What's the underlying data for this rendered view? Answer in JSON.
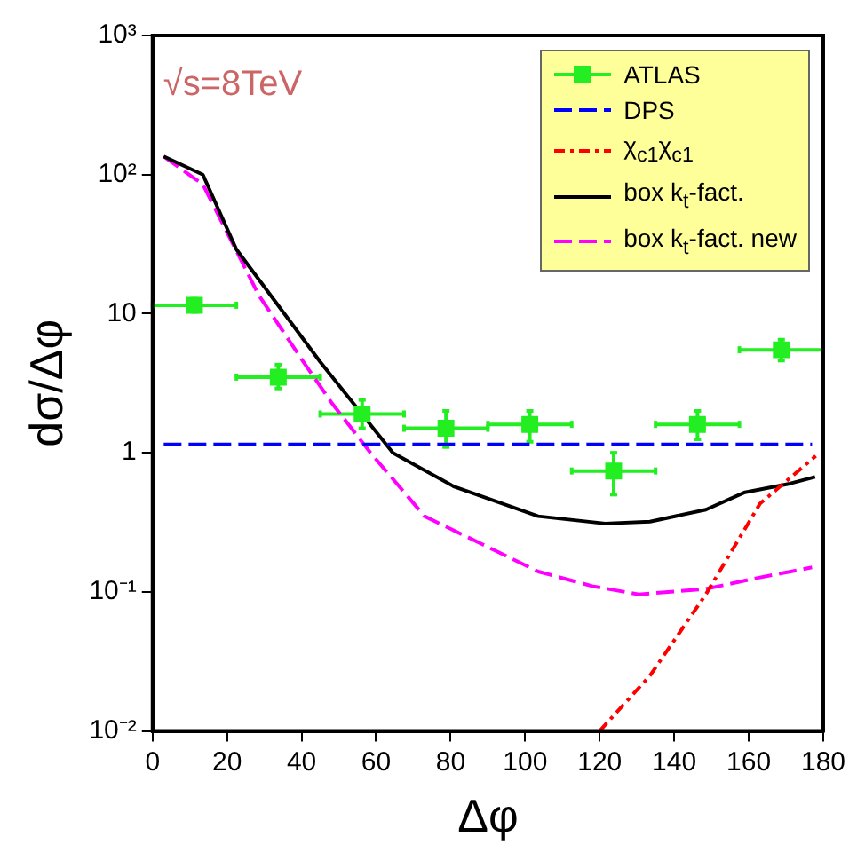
{
  "chart_data": {
    "type": "line",
    "xlabel": "Δφ",
    "ylabel": "dσ/Δφ",
    "log": "y",
    "xlim": [
      0,
      180
    ],
    "ylim": [
      0.01,
      1000
    ],
    "xticks": [
      0,
      20,
      40,
      60,
      80,
      100,
      120,
      140,
      160,
      180
    ],
    "yticks": [
      {
        "value": 0.01,
        "label": "10⁻²"
      },
      {
        "value": 0.1,
        "label": "10⁻¹"
      },
      1,
      10,
      {
        "value": 100,
        "label": "10²"
      },
      {
        "value": 1000,
        "label": "10³"
      }
    ],
    "grid": false,
    "legend": "top right",
    "annotations": [
      "√s=8TeV"
    ],
    "series": [
      {
        "name": "ATLAS",
        "type": "scatter",
        "marker": "square",
        "color": "#22ee22",
        "x": [
          11.25,
          33.75,
          56.25,
          78.75,
          101.25,
          123.75,
          146.25,
          168.75
        ],
        "values": [
          11.5,
          3.5,
          1.9,
          1.5,
          1.6,
          0.74,
          1.6,
          5.5
        ],
        "errors": [
          [
            10.3,
            12.8
          ],
          [
            2.9,
            4.3
          ],
          [
            1.5,
            2.4
          ],
          [
            1.1,
            2.0
          ],
          [
            1.2,
            2.0
          ],
          [
            0.5,
            1.0
          ],
          [
            1.25,
            2.0
          ],
          [
            4.6,
            6.5
          ]
        ],
        "xerrors": [
          11.25,
          11.25,
          11.25,
          11.25,
          11.25,
          11.25,
          11.25,
          11.25
        ]
      },
      {
        "name": "DPS",
        "line_style": "dashed",
        "marker": "none",
        "color": "#0000ff",
        "x": [
          3,
          177
        ],
        "values": [
          1.15,
          1.15
        ]
      },
      {
        "name": "χ$_{c1}$χ$_{c1}$",
        "line_style": "dotted",
        "marker": "none",
        "color": "#ff0000",
        "x": [
          120,
          133.5,
          148.5,
          163,
          178
        ],
        "values": [
          0.01,
          0.025,
          0.096,
          0.43,
          0.95
        ]
      },
      {
        "name": "box k$_{t}$-fact.",
        "line_style": "solid",
        "marker": "none",
        "color": "#000000",
        "x": [
          3,
          13.5,
          22.5,
          36,
          45,
          64.5,
          81,
          103.5,
          121.5,
          133.5,
          148.5,
          159,
          171,
          177.8
        ],
        "values": [
          135,
          100,
          29,
          9.5,
          4.5,
          1.0,
          0.57,
          0.35,
          0.31,
          0.32,
          0.39,
          0.52,
          0.6,
          0.67
        ]
      },
      {
        "name": "box k$_{t}$-fact. new",
        "line_style": "dashed",
        "marker": "none",
        "color": "#ff00ff",
        "x": [
          3,
          13.5,
          28.5,
          40.5,
          48,
          58.5,
          73,
          88.5,
          103.5,
          118,
          130.5,
          148.5,
          163,
          177
        ],
        "values": [
          135,
          85,
          13.6,
          4.5,
          2.3,
          1.0,
          0.35,
          0.22,
          0.14,
          0.11,
          0.096,
          0.105,
          0.127,
          0.15
        ]
      }
    ]
  }
}
